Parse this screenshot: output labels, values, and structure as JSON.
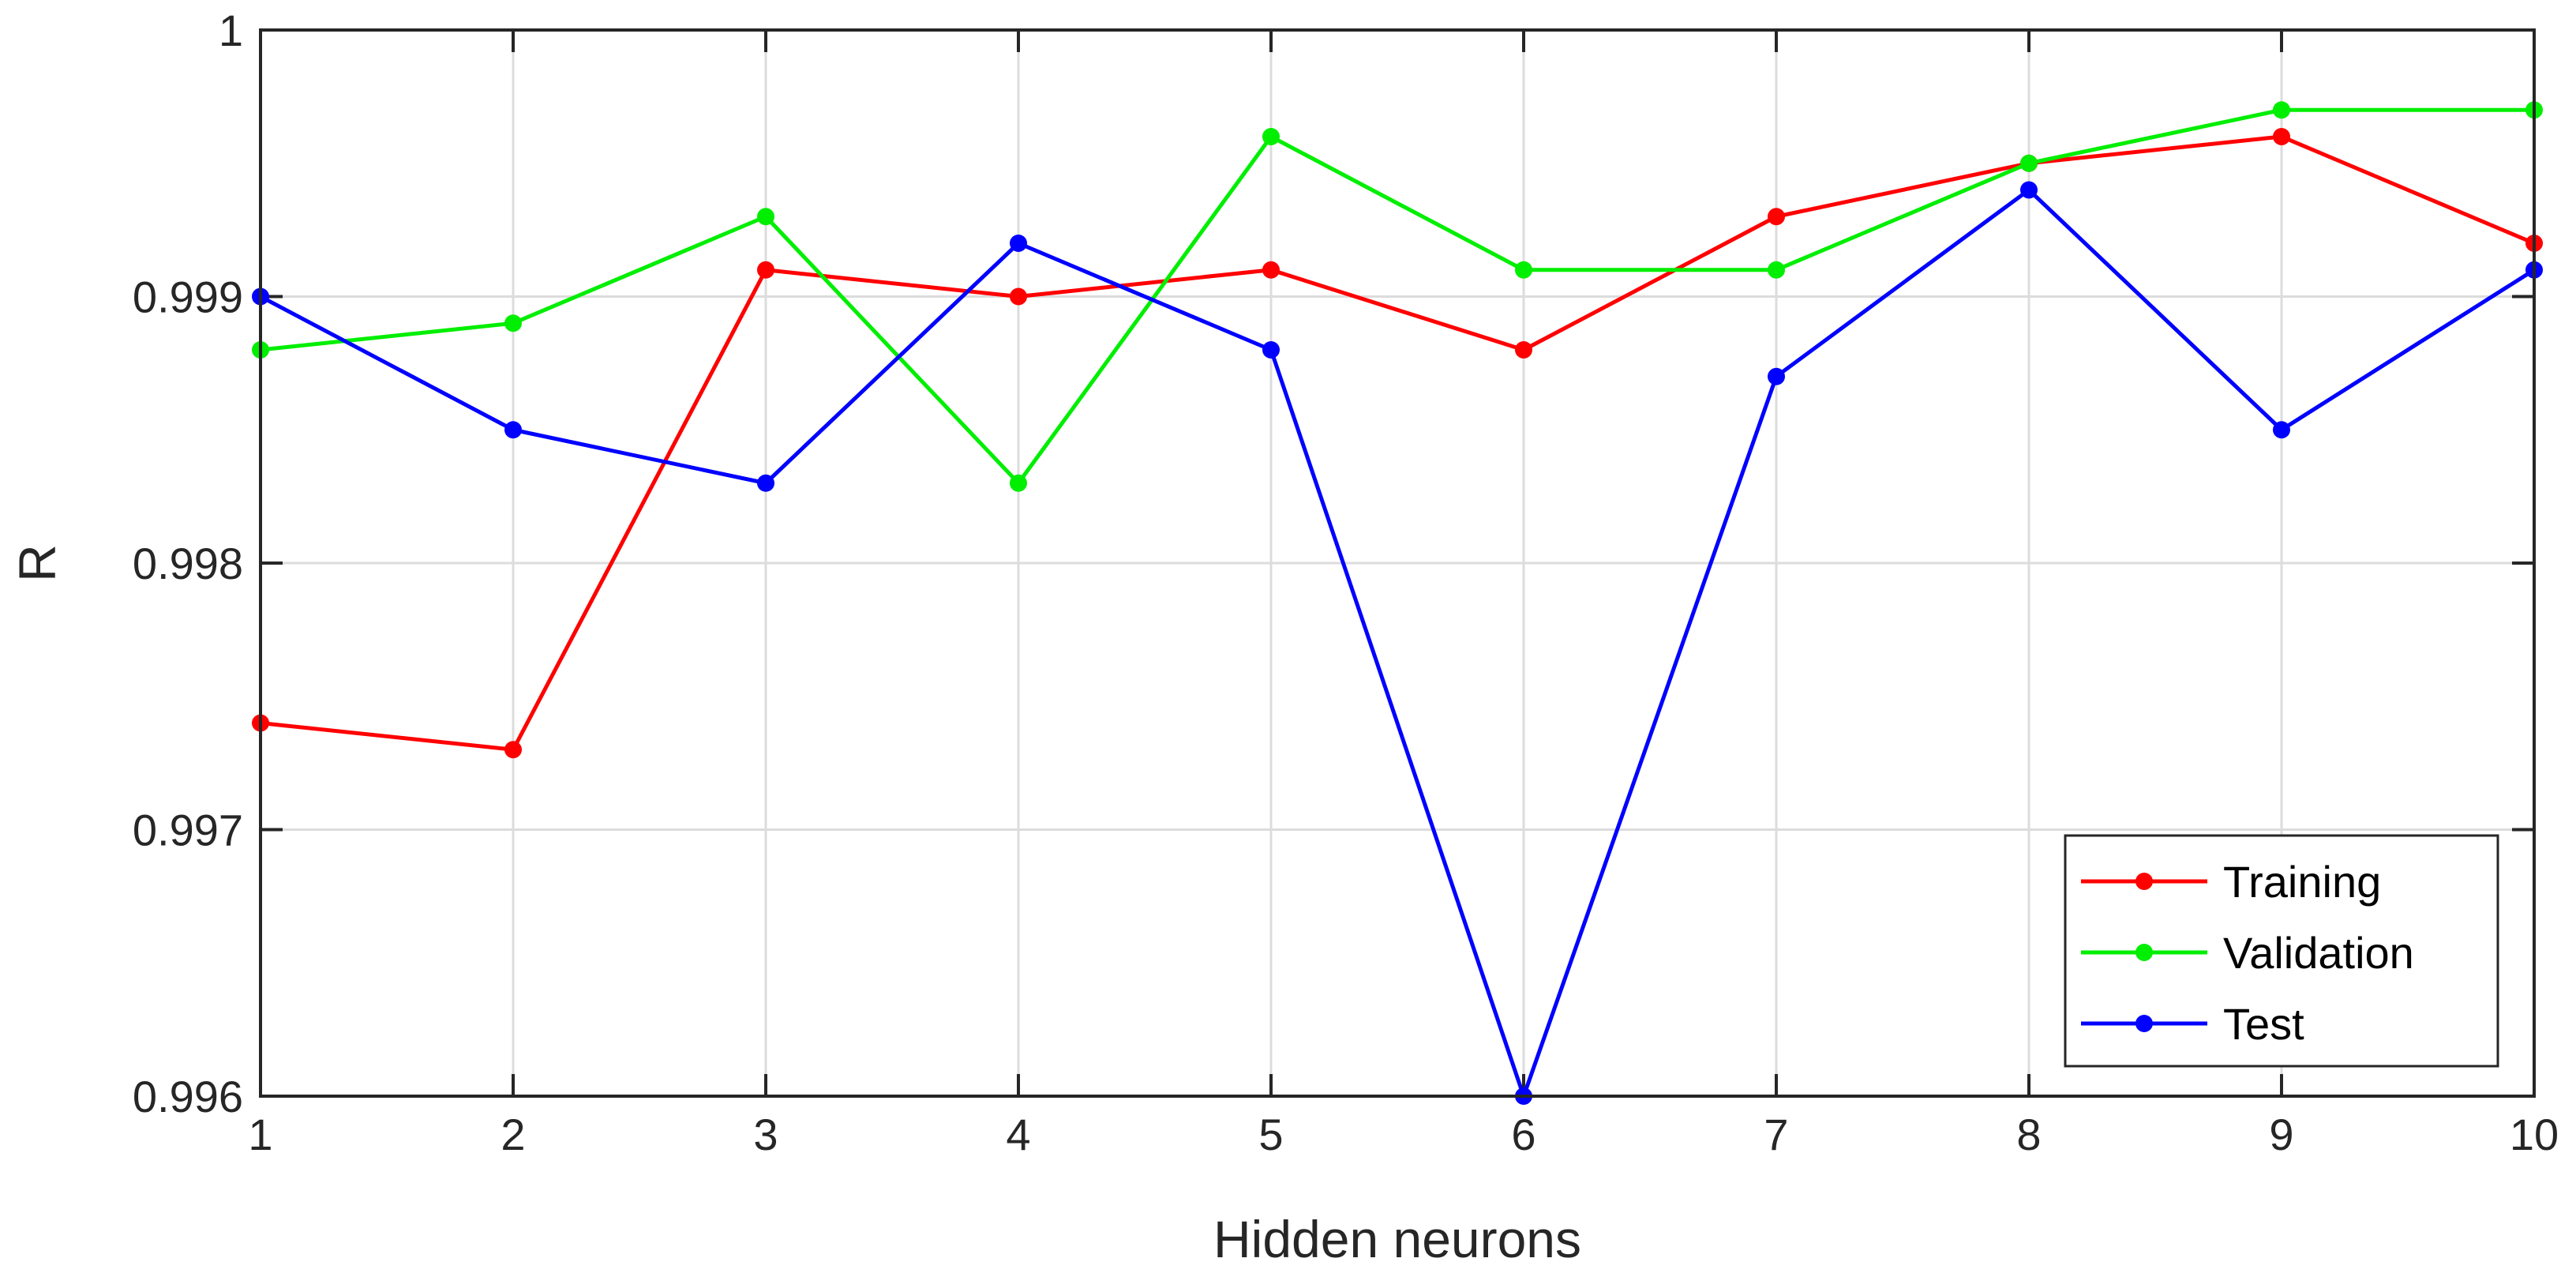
{
  "chart_data": {
    "type": "line",
    "xlabel": "Hidden neurons",
    "ylabel": "R",
    "x": [
      1,
      2,
      3,
      4,
      5,
      6,
      7,
      8,
      9,
      10
    ],
    "xlim": [
      1,
      10
    ],
    "ylim": [
      0.996,
      1
    ],
    "xticks": [
      "1",
      "2",
      "3",
      "4",
      "5",
      "6",
      "7",
      "8",
      "9",
      "10"
    ],
    "yticks": [
      {
        "value": 0.996,
        "label": "0.996"
      },
      {
        "value": 0.997,
        "label": "0.997"
      },
      {
        "value": 0.998,
        "label": "0.998"
      },
      {
        "value": 0.999,
        "label": "0.999"
      },
      {
        "value": 1,
        "label": "1"
      }
    ],
    "grid": true,
    "legend_position": "bottom-right",
    "series": [
      {
        "name": "Training",
        "color": "#ff0000",
        "values": [
          0.9974,
          0.9973,
          0.9991,
          0.999,
          0.9991,
          0.9988,
          0.9993,
          0.9995,
          0.9996,
          0.9992
        ]
      },
      {
        "name": "Validation",
        "color": "#00ee00",
        "values": [
          0.9988,
          0.9989,
          0.9993,
          0.9983,
          0.9996,
          0.9991,
          0.9991,
          0.9995,
          0.9997,
          0.9997
        ]
      },
      {
        "name": "Test",
        "color": "#0000ff",
        "values": [
          0.999,
          0.9985,
          0.9983,
          0.9992,
          0.9988,
          0.996,
          0.9987,
          0.9994,
          0.9985,
          0.9991
        ]
      }
    ]
  }
}
